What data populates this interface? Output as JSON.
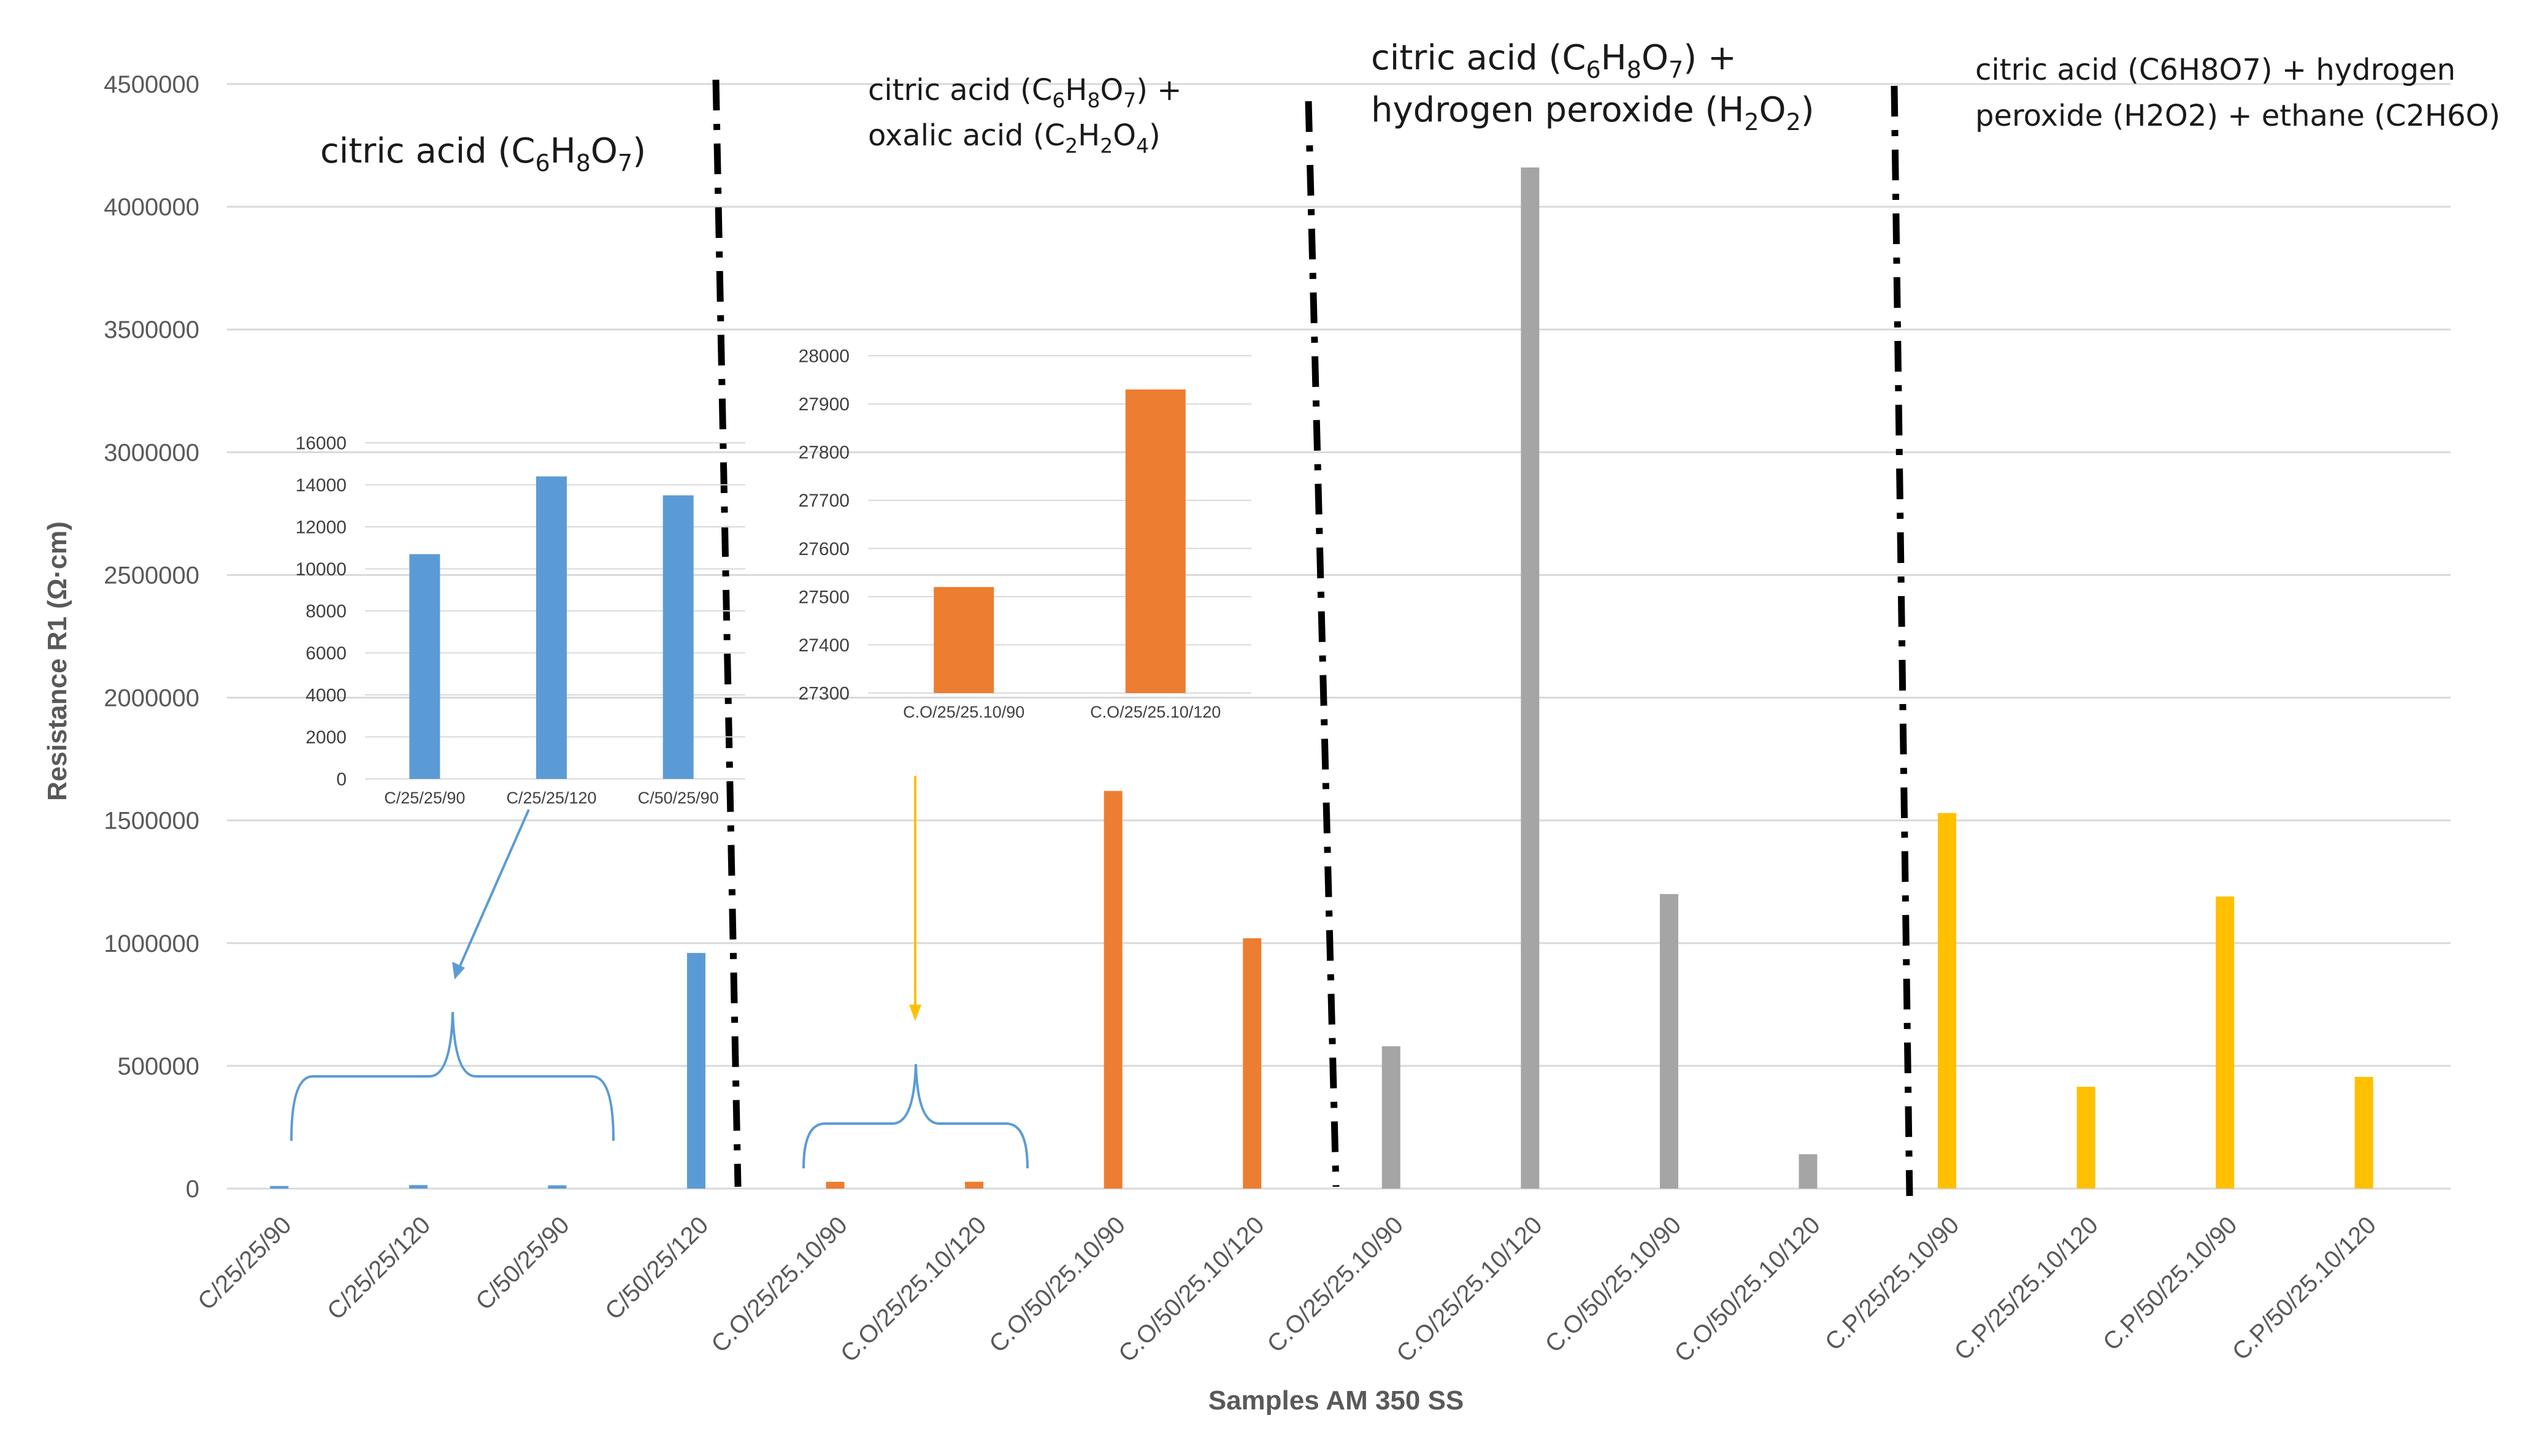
{
  "colors": {
    "blue": "#5b9bd5",
    "orange": "#ed7d31",
    "gray": "#a5a5a5",
    "yellow": "#ffc000",
    "grid": "#d9d9d9",
    "axis_text": "#595959",
    "separator": "#000000"
  },
  "chart_data": [
    {
      "type": "bar",
      "id": "main",
      "xlabel": "Samples AM 350 SS",
      "ylabel": "Resistance R1 (Ω·cm)",
      "ylim": [
        0,
        4500000
      ],
      "yticks": [
        "0",
        "500000",
        "1000000",
        "1500000",
        "2000000",
        "2500000",
        "3000000",
        "3500000",
        "4000000",
        "4500000"
      ],
      "grid": true,
      "categories": [
        "C/25/25/90",
        "C/25/25/120",
        "C/50/25/90",
        "C/50/25/120",
        "C.O/25/25.10/90",
        "C.O/25/25.10/120",
        "C.O/50/25.10/90",
        "C.O/50/25.10/120",
        "C.O/25/25.10/90",
        "C.O/25/25.10/120",
        "C.O/50/25.10/90",
        "C.O/50/25.10/120",
        "C.P/25/25.10/90",
        "C.P/25/25.10/120",
        "C.P/50/25.10/90",
        "C.P/50/25.10/120"
      ],
      "values": [
        10700,
        14400,
        13500,
        960000,
        27520,
        27930,
        1620000,
        1020000,
        580000,
        4160000,
        1200000,
        140000,
        1530000,
        415000,
        1190000,
        455000
      ],
      "groups": [
        {
          "label": "citric acid (C6H8O7)",
          "color": "blue",
          "start": 0,
          "end": 3
        },
        {
          "label": "citric acid (C6H8O7) + oxalic acid (C2H2O4)",
          "color": "orange",
          "start": 4,
          "end": 7
        },
        {
          "label": "citric acid (C6H8O7) + hydrogen peroxide (H2O2)",
          "color": "gray",
          "start": 8,
          "end": 11
        },
        {
          "label": "citric acid (C6H8O7) + hydrogen peroxide (H2O2) + ethane (C2H6O)",
          "color": "yellow",
          "start": 12,
          "end": 15
        }
      ]
    },
    {
      "type": "bar",
      "id": "inset_blue",
      "ylim": [
        0,
        16000
      ],
      "yticks": [
        "0",
        "2000",
        "4000",
        "6000",
        "8000",
        "10000",
        "12000",
        "14000",
        "16000"
      ],
      "categories": [
        "C/25/25/90",
        "C/25/25/120",
        "C/50/25/90"
      ],
      "values": [
        10700,
        14400,
        13500
      ],
      "color": "blue"
    },
    {
      "type": "bar",
      "id": "inset_orange",
      "ylim": [
        27300,
        28000
      ],
      "yticks": [
        "27300",
        "27400",
        "27500",
        "27600",
        "27700",
        "27800",
        "27900",
        "28000"
      ],
      "categories": [
        "C.O/25/25.10/90",
        "C.O/25/25.10/120"
      ],
      "values": [
        27520,
        27930
      ],
      "color": "orange"
    }
  ],
  "annotations": {
    "group1": {
      "pre": "citric acid (C",
      "s1": "6",
      "m1": "H",
      "s2": "8",
      "m2": "O",
      "s3": "7",
      "post": ")"
    },
    "group2_line1": {
      "pre": "citric acid (C",
      "s1": "6",
      "m1": "H",
      "s2": "8",
      "m2": "O",
      "s3": "7",
      "post": ") +"
    },
    "group2_line2": {
      "pre": "oxalic acid (C",
      "s1": "2",
      "m1": "H",
      "s2": "2",
      "m2": "O",
      "s3": "4",
      "post": ")"
    },
    "group3_line1": {
      "pre": "citric acid (C",
      "s1": "6",
      "m1": "H",
      "s2": "8",
      "m2": "O",
      "s3": "7",
      "post": ") +"
    },
    "group3_line2": {
      "pre": "hydrogen peroxide (H",
      "s1": "2",
      "m1": "O",
      "s2": "2",
      "post": ")"
    },
    "group4_line1": "citric acid (C6H8O7) + hydrogen",
    "group4_line2": "peroxide (H2O2) + ethane (C2H6O)"
  }
}
